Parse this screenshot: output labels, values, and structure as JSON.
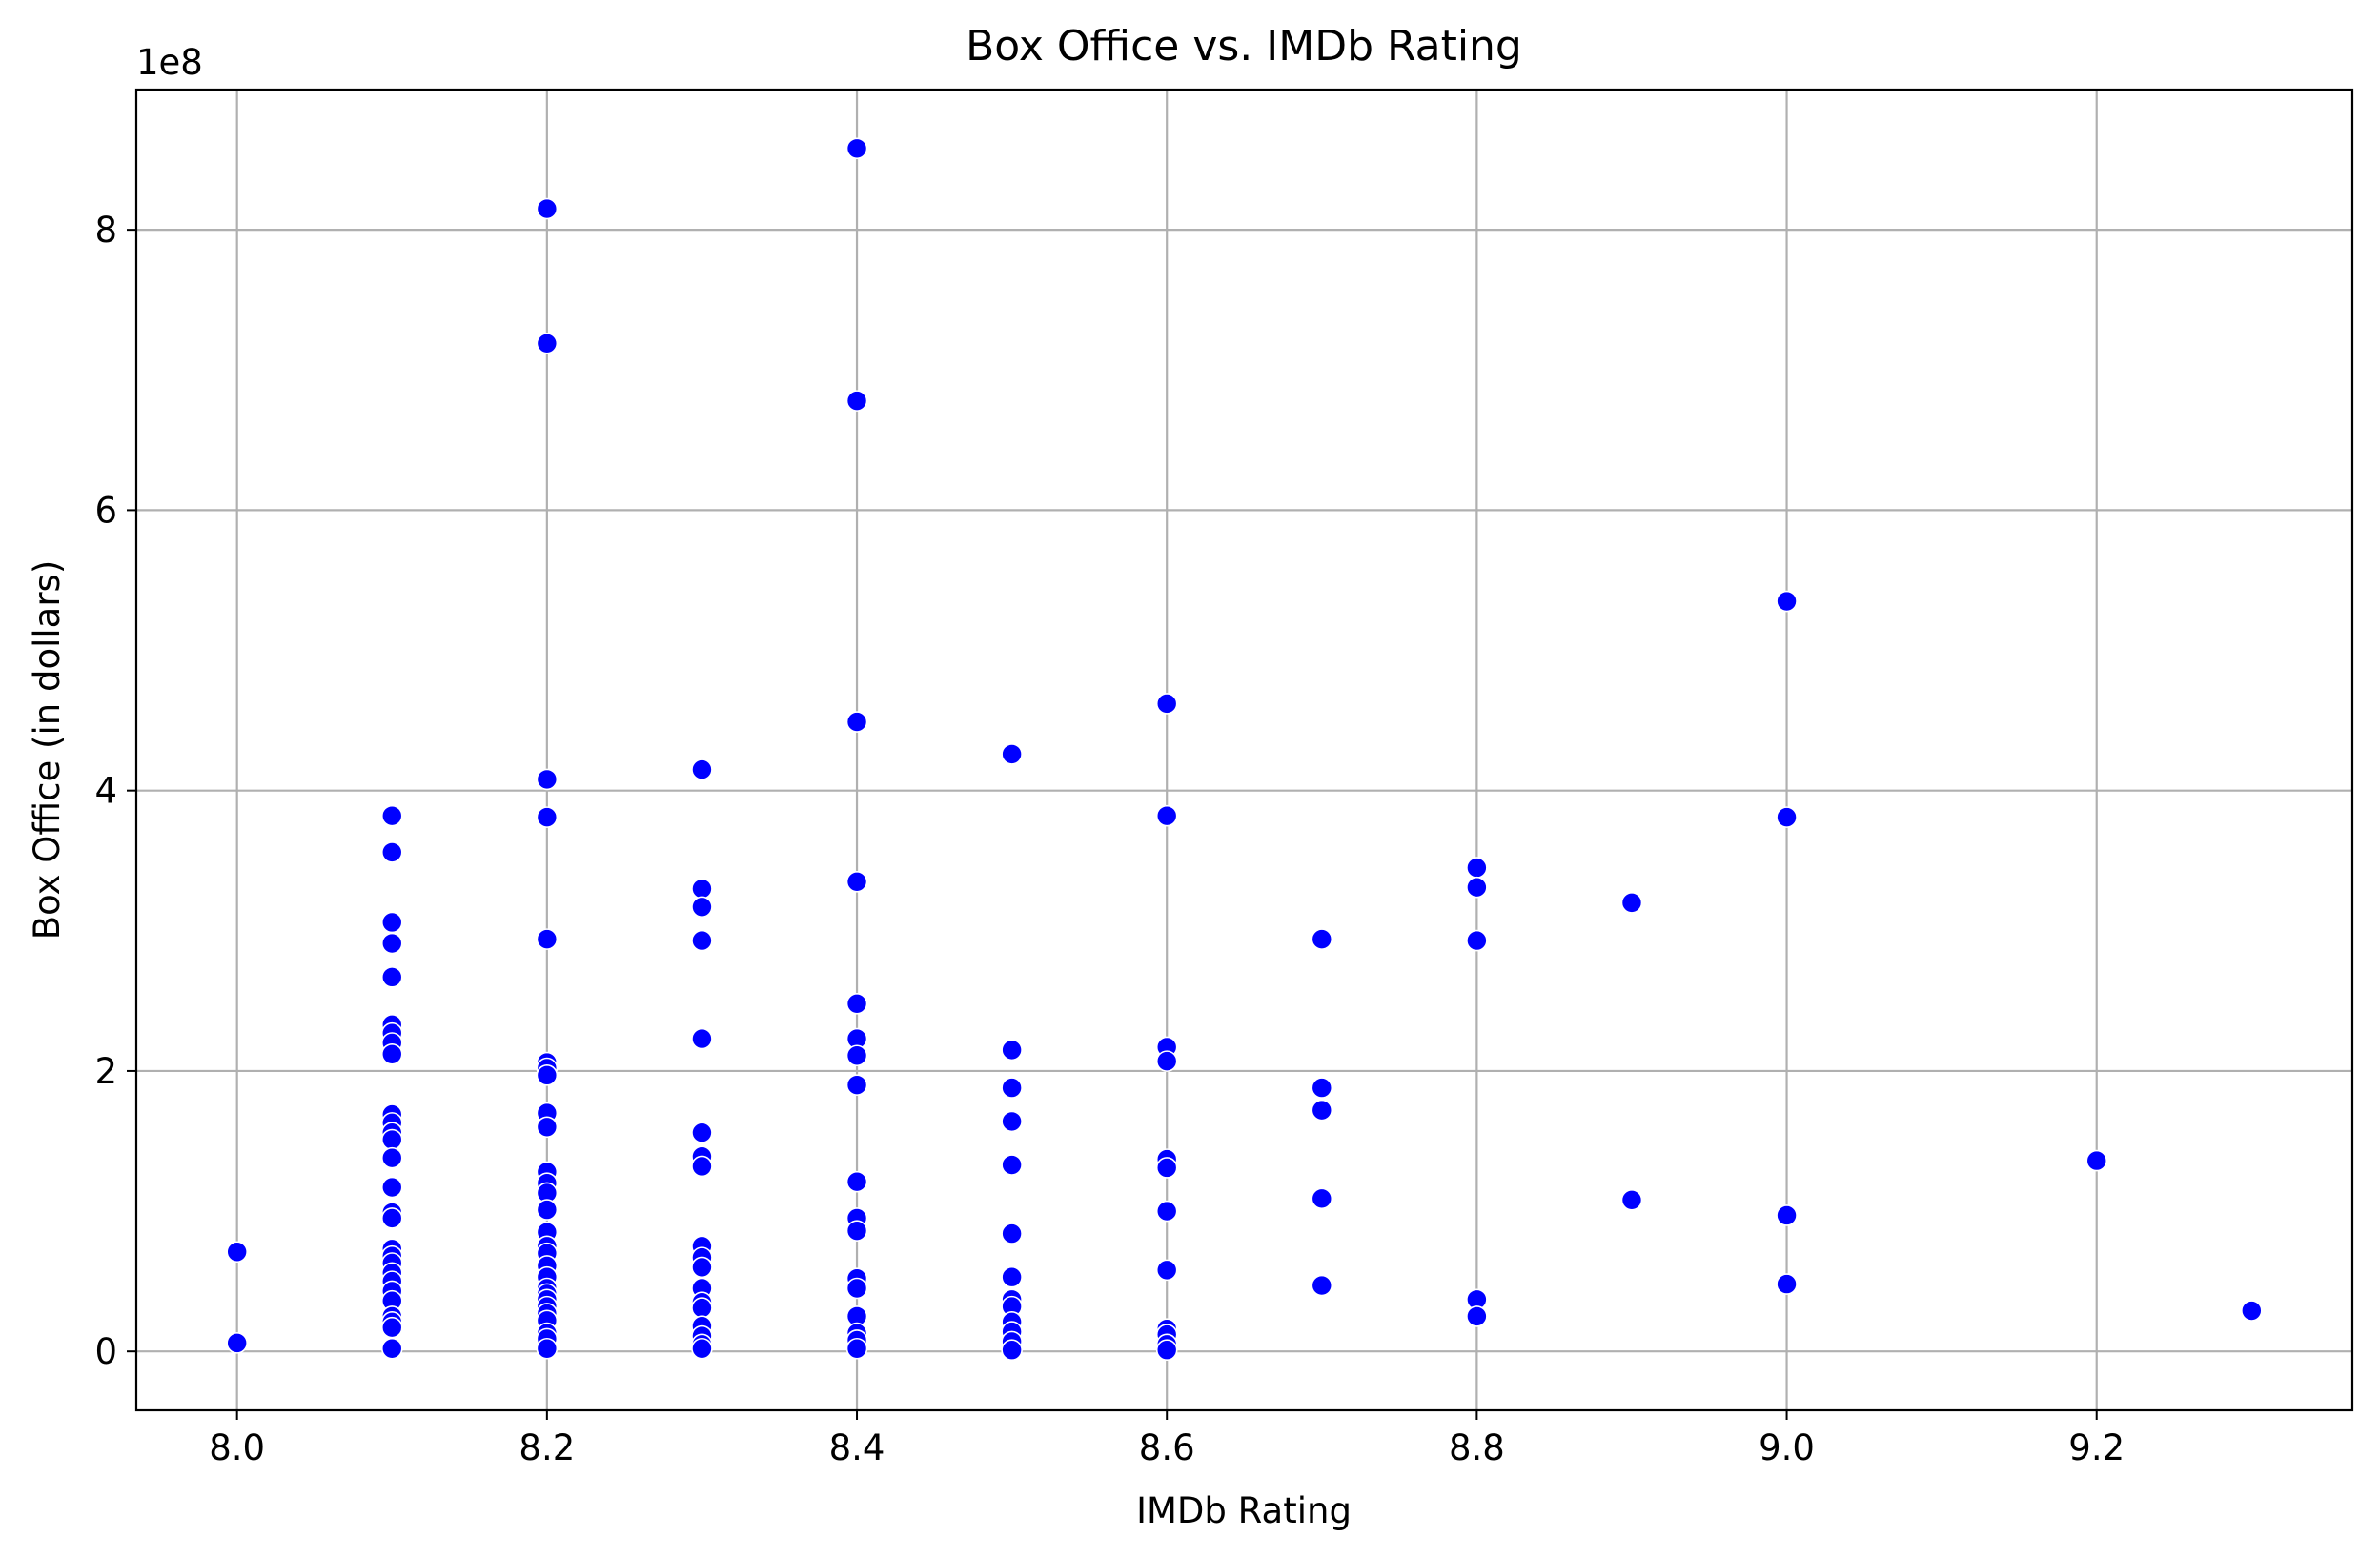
{
  "chart_data": {
    "type": "scatter",
    "title": "Box Office vs. IMDb Rating",
    "xlabel": "IMDb Rating",
    "ylabel": "Box Office (in dollars)",
    "y_offset_label": "1e8",
    "xlim": [
      7.935,
      9.365
    ],
    "ylim": [
      -42000000,
      900000000
    ],
    "x_ticks": [
      8.0,
      8.2,
      8.4,
      8.6,
      8.8,
      9.0,
      9.2
    ],
    "x_tick_labels": [
      "8.0",
      "8.2",
      "8.4",
      "8.6",
      "8.8",
      "9.0",
      "9.2"
    ],
    "y_ticks": [
      0,
      200000000,
      400000000,
      600000000,
      800000000
    ],
    "y_tick_labels": [
      "0",
      "2",
      "4",
      "6",
      "8"
    ],
    "grid": true,
    "marker_color": "#0000ff",
    "marker_edge_color": "#ffffff",
    "series": [
      {
        "points": [
          [
            8.0,
            71000000
          ],
          [
            8.0,
            6000000
          ],
          [
            8.1,
            382000000
          ],
          [
            8.1,
            356000000
          ],
          [
            8.1,
            306000000
          ],
          [
            8.1,
            291000000
          ],
          [
            8.1,
            267000000
          ],
          [
            8.1,
            233000000
          ],
          [
            8.1,
            227000000
          ],
          [
            8.1,
            220000000
          ],
          [
            8.1,
            212000000
          ],
          [
            8.1,
            169000000
          ],
          [
            8.1,
            163000000
          ],
          [
            8.1,
            156000000
          ],
          [
            8.1,
            151000000
          ],
          [
            8.1,
            138000000
          ],
          [
            8.1,
            117000000
          ],
          [
            8.1,
            99000000
          ],
          [
            8.1,
            95000000
          ],
          [
            8.1,
            73000000
          ],
          [
            8.1,
            68000000
          ],
          [
            8.1,
            63000000
          ],
          [
            8.1,
            56000000
          ],
          [
            8.1,
            50000000
          ],
          [
            8.1,
            43000000
          ],
          [
            8.1,
            36000000
          ],
          [
            8.1,
            25000000
          ],
          [
            8.1,
            21000000
          ],
          [
            8.1,
            17000000
          ],
          [
            8.1,
            2000000
          ],
          [
            8.2,
            815000000
          ],
          [
            8.2,
            719000000
          ],
          [
            8.2,
            408000000
          ],
          [
            8.2,
            381000000
          ],
          [
            8.2,
            294000000
          ],
          [
            8.2,
            206000000
          ],
          [
            8.2,
            202000000
          ],
          [
            8.2,
            197000000
          ],
          [
            8.2,
            170000000
          ],
          [
            8.2,
            160000000
          ],
          [
            8.2,
            128000000
          ],
          [
            8.2,
            120000000
          ],
          [
            8.2,
            113000000
          ],
          [
            8.2,
            101000000
          ],
          [
            8.2,
            85000000
          ],
          [
            8.2,
            75000000
          ],
          [
            8.2,
            70000000
          ],
          [
            8.2,
            61000000
          ],
          [
            8.2,
            53000000
          ],
          [
            8.2,
            45000000
          ],
          [
            8.2,
            41000000
          ],
          [
            8.2,
            37000000
          ],
          [
            8.2,
            32000000
          ],
          [
            8.2,
            27000000
          ],
          [
            8.2,
            22000000
          ],
          [
            8.2,
            13000000
          ],
          [
            8.2,
            9000000
          ],
          [
            8.2,
            2000000
          ],
          [
            8.3,
            415000000
          ],
          [
            8.3,
            330000000
          ],
          [
            8.3,
            317000000
          ],
          [
            8.3,
            293000000
          ],
          [
            8.3,
            223000000
          ],
          [
            8.3,
            156000000
          ],
          [
            8.3,
            139000000
          ],
          [
            8.3,
            132000000
          ],
          [
            8.3,
            75000000
          ],
          [
            8.3,
            67000000
          ],
          [
            8.3,
            60000000
          ],
          [
            8.3,
            45000000
          ],
          [
            8.3,
            35000000
          ],
          [
            8.3,
            31000000
          ],
          [
            8.3,
            18000000
          ],
          [
            8.3,
            11000000
          ],
          [
            8.3,
            5000000
          ],
          [
            8.3,
            2000000
          ],
          [
            8.4,
            858000000
          ],
          [
            8.4,
            678000000
          ],
          [
            8.4,
            449000000
          ],
          [
            8.4,
            335000000
          ],
          [
            8.4,
            248000000
          ],
          [
            8.4,
            223000000
          ],
          [
            8.4,
            211000000
          ],
          [
            8.4,
            190000000
          ],
          [
            8.4,
            121000000
          ],
          [
            8.4,
            95000000
          ],
          [
            8.4,
            86000000
          ],
          [
            8.4,
            52000000
          ],
          [
            8.4,
            45000000
          ],
          [
            8.4,
            25000000
          ],
          [
            8.4,
            13000000
          ],
          [
            8.4,
            8000000
          ],
          [
            8.4,
            2000000
          ],
          [
            8.5,
            426000000
          ],
          [
            8.5,
            215000000
          ],
          [
            8.5,
            188000000
          ],
          [
            8.5,
            164000000
          ],
          [
            8.5,
            133000000
          ],
          [
            8.5,
            84000000
          ],
          [
            8.5,
            53000000
          ],
          [
            8.5,
            37000000
          ],
          [
            8.5,
            32000000
          ],
          [
            8.5,
            21000000
          ],
          [
            8.5,
            14000000
          ],
          [
            8.5,
            7000000
          ],
          [
            8.5,
            1000000
          ],
          [
            8.6,
            462000000
          ],
          [
            8.6,
            382000000
          ],
          [
            8.6,
            217000000
          ],
          [
            8.6,
            207000000
          ],
          [
            8.6,
            137000000
          ],
          [
            8.6,
            131000000
          ],
          [
            8.6,
            100000000
          ],
          [
            8.6,
            58000000
          ],
          [
            8.6,
            16000000
          ],
          [
            8.6,
            12000000
          ],
          [
            8.6,
            5000000
          ],
          [
            8.6,
            1000000
          ],
          [
            8.7,
            294000000
          ],
          [
            8.7,
            188000000
          ],
          [
            8.7,
            172000000
          ],
          [
            8.7,
            109000000
          ],
          [
            8.7,
            47000000
          ],
          [
            8.8,
            345000000
          ],
          [
            8.8,
            331000000
          ],
          [
            8.8,
            293000000
          ],
          [
            8.8,
            37000000
          ],
          [
            8.8,
            25000000
          ],
          [
            8.9,
            320000000
          ],
          [
            8.9,
            108000000
          ],
          [
            9.0,
            535000000
          ],
          [
            9.0,
            381000000
          ],
          [
            9.0,
            97000000
          ],
          [
            9.0,
            48000000
          ],
          [
            9.2,
            136000000
          ],
          [
            9.3,
            29000000
          ]
        ]
      }
    ]
  }
}
